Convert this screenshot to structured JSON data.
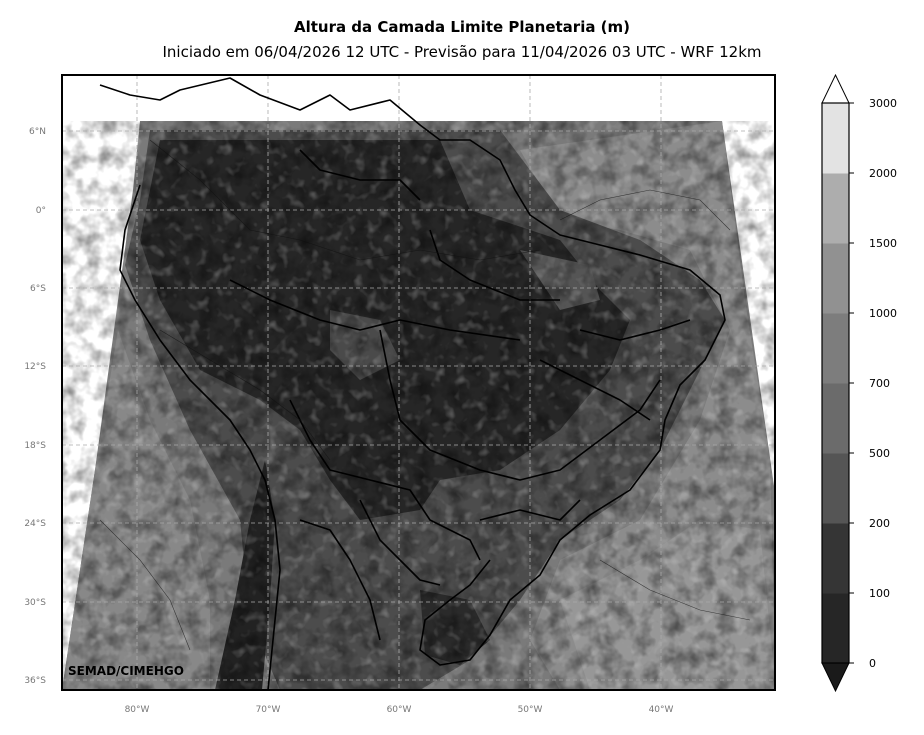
{
  "title": "Altura da Camada Limite Planetaria (m)",
  "subtitle": "Iniciado em 06/04/2026 12 UTC - Previsão para 11/04/2026 03 UTC - WRF 12km",
  "credit": "SEMAD/CIMEHGO",
  "lat_labels": [
    "6°N",
    "0°",
    "6°S",
    "12°S",
    "18°S",
    "24°S",
    "30°S",
    "36°S"
  ],
  "lon_labels": [
    "80°W",
    "70°W",
    "60°W",
    "50°W",
    "40°W"
  ],
  "colorbar": {
    "levels": [
      "0",
      "100",
      "200",
      "500",
      "700",
      "1000",
      "1500",
      "2000",
      "3000"
    ],
    "colors": [
      "#1a1a1a",
      "#262626",
      "#353535",
      "#555555",
      "#6b6b6b",
      "#7d7d7d",
      "#919191",
      "#adadad",
      "#e3e3e3"
    ],
    "extend": "both"
  }
}
